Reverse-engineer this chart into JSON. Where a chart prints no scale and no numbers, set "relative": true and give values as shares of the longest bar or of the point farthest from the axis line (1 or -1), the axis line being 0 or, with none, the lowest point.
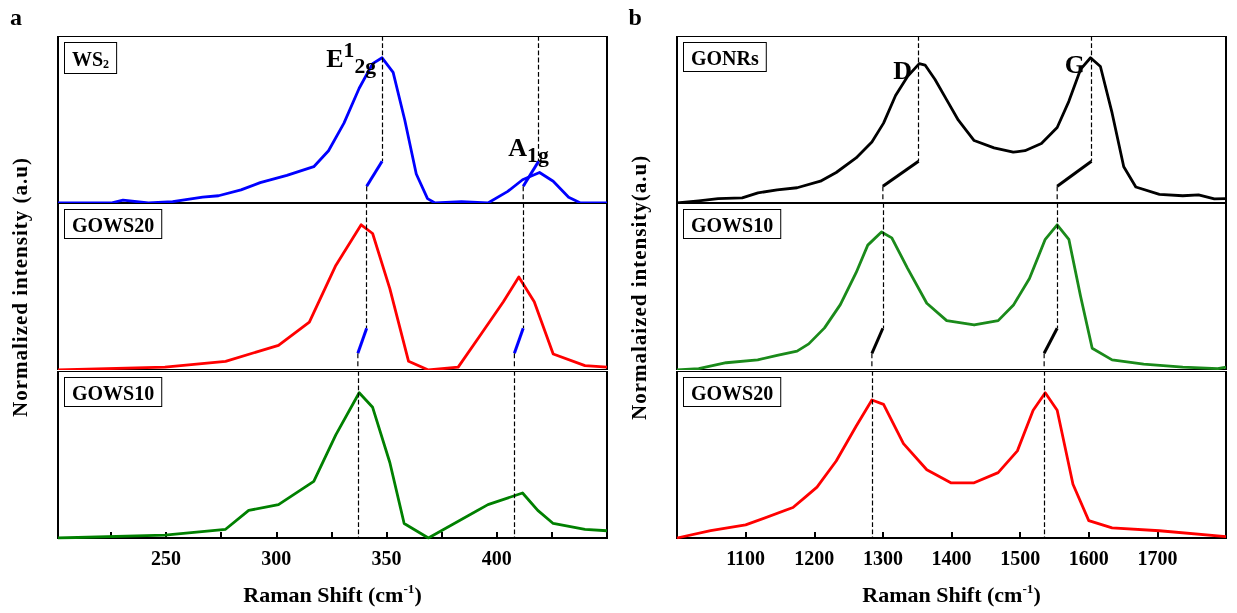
{
  "chart_data": [
    {
      "type": "line",
      "title": "a",
      "relative": true,
      "marker": "none",
      "xlim": [
        201,
        450
      ],
      "tick_labels": false,
      "x": [
        201,
        225,
        230.5,
        242,
        253,
        266.6,
        273.8,
        284,
        292.7,
        304.8,
        317,
        323.7,
        330.7,
        337.6,
        343.7,
        348,
        353,
        358.3,
        363.5,
        368.6,
        372,
        384,
        396,
        405,
        411.7,
        419.4,
        425.6,
        432.6,
        438,
        450
      ],
      "series": [
        {
          "color": "#0000ff",
          "values": [
            0,
            0,
            0.02,
            0,
            0.01,
            0.04,
            0.05,
            0.09,
            0.14,
            0.19,
            0.25,
            0.36,
            0.55,
            0.79,
            0.96,
            1,
            0.9,
            0.57,
            0.2,
            0.03,
            0,
            0.01,
            0,
            0.08,
            0.16,
            0.21,
            0.15,
            0.04,
            0,
            0
          ]
        }
      ],
      "ref_lines": [
        {
          "axis": "x",
          "value": 348,
          "color": "#000000",
          "line_style": "dashed"
        },
        {
          "axis": "x",
          "value": 419,
          "color": "#000000",
          "line_style": "dashed"
        }
      ],
      "annotations": [
        "WS$_{2}$",
        {
          "text": "E$^{1}$$_{2g}$",
          "x": 348,
          "y": 1
        },
        {
          "text": "A$_{1g}$",
          "x": 419,
          "y": 0.21
        }
      ]
    },
    {
      "type": "line",
      "relative": true,
      "marker": "none",
      "xlim": [
        201,
        450
      ],
      "tick_labels": false,
      "ylabel": "Normalized intensity (a.u)",
      "x": [
        201,
        249.5,
        277,
        301,
        315,
        327,
        338.5,
        343.7,
        351.5,
        360,
        369,
        382.5,
        393,
        403,
        410,
        417,
        425.6,
        440,
        450
      ],
      "series": [
        {
          "color": "#ff0000",
          "values": [
            0,
            0.02,
            0.06,
            0.17,
            0.33,
            0.72,
            1,
            0.94,
            0.56,
            0.06,
            0,
            0.02,
            0.25,
            0.47,
            0.64,
            0.47,
            0.11,
            0.03,
            0.02
          ]
        }
      ],
      "ref_lines": [
        {
          "axis": "x",
          "value": 341,
          "color": "#000000",
          "line_style": "dashed"
        },
        {
          "axis": "x",
          "value": 412,
          "color": "#000000",
          "line_style": "dashed"
        }
      ],
      "annotations": [
        "GOWS20"
      ]
    },
    {
      "type": "line",
      "relative": true,
      "marker": "none",
      "xlim": [
        201,
        450
      ],
      "tick_labels": "x",
      "xlabel": "Raman Shift (cm$^{-1}$)",
      "xticks": [
        {
          "value": 225,
          "label": null
        },
        250,
        {
          "value": 275,
          "label": null
        },
        300,
        {
          "value": 325,
          "label": null
        },
        350,
        {
          "value": 375,
          "label": null
        },
        400,
        {
          "value": 425,
          "label": null
        }
      ],
      "x": [
        201,
        249.5,
        277,
        287.5,
        301,
        317,
        327,
        337.6,
        343.7,
        351.5,
        358,
        369,
        396,
        411.7,
        418.6,
        425.6,
        440,
        450
      ],
      "series": [
        {
          "color": "#008000",
          "values": [
            0,
            0.02,
            0.06,
            0.19,
            0.23,
            0.39,
            0.71,
            1,
            0.9,
            0.52,
            0.1,
            0,
            0.23,
            0.31,
            0.19,
            0.1,
            0.06,
            0.05
          ]
        }
      ],
      "ref_lines": [
        {
          "axis": "x",
          "value": 337,
          "color": "#000000",
          "line_style": "dashed"
        },
        {
          "axis": "x",
          "value": 408,
          "color": "#000000",
          "line_style": "dashed"
        }
      ],
      "annotations": [
        "GOWS10"
      ]
    },
    {
      "type": "line",
      "title": "b",
      "relative": true,
      "marker": "none",
      "xlim": [
        1000,
        1800
      ],
      "tick_labels": false,
      "x": [
        1000,
        1031.6,
        1060,
        1095,
        1118,
        1146,
        1175,
        1209,
        1232,
        1261,
        1284,
        1301,
        1318.5,
        1335.7,
        1353,
        1361.5,
        1376,
        1393,
        1410,
        1433,
        1462,
        1490,
        1507,
        1531,
        1554,
        1571,
        1588,
        1602.6,
        1617,
        1634,
        1651,
        1668.6,
        1703,
        1737,
        1760,
        1783,
        1800
      ],
      "series": [
        {
          "color": "#000000",
          "values": [
            0,
            0.015,
            0.03,
            0.035,
            0.07,
            0.09,
            0.105,
            0.15,
            0.21,
            0.31,
            0.42,
            0.55,
            0.74,
            0.87,
            0.96,
            0.95,
            0.85,
            0.71,
            0.57,
            0.43,
            0.38,
            0.35,
            0.36,
            0.41,
            0.52,
            0.7,
            0.92,
            1,
            0.94,
            0.62,
            0.25,
            0.11,
            0.06,
            0.05,
            0.056,
            0.028,
            0.03
          ]
        }
      ],
      "ref_lines": [
        {
          "axis": "x",
          "value": 1352,
          "color": "#000000",
          "line_style": "dashed"
        },
        {
          "axis": "x",
          "value": 1604,
          "color": "#000000",
          "line_style": "dashed"
        }
      ],
      "annotations": [
        "GONRs",
        {
          "text": "D",
          "x": 1352,
          "y": 0.96
        },
        {
          "text": "G",
          "x": 1604,
          "y": 1
        }
      ]
    },
    {
      "type": "line",
      "relative": true,
      "marker": "none",
      "xlim": [
        1000,
        1800
      ],
      "tick_labels": false,
      "ylabel": "Normalaized intensity(a.u)",
      "x": [
        1000,
        1031.6,
        1071.7,
        1117.6,
        1146,
        1175,
        1192,
        1215,
        1238,
        1261,
        1278,
        1298,
        1313,
        1336,
        1364,
        1393,
        1433,
        1468,
        1490.7,
        1513.6,
        1536.6,
        1554,
        1571,
        1588,
        1605,
        1634,
        1680,
        1737,
        1788,
        1800
      ],
      "series": [
        {
          "color": "#1a8a1a",
          "values": [
            0,
            0.01,
            0.05,
            0.07,
            0.1,
            0.13,
            0.18,
            0.29,
            0.45,
            0.67,
            0.86,
            0.95,
            0.91,
            0.7,
            0.46,
            0.34,
            0.31,
            0.34,
            0.45,
            0.63,
            0.9,
            1,
            0.9,
            0.51,
            0.15,
            0.07,
            0.04,
            0.02,
            0.01,
            0.02
          ]
        }
      ],
      "ref_lines": [
        {
          "axis": "x",
          "value": 1300,
          "color": "#000000",
          "line_style": "dashed"
        },
        {
          "axis": "x",
          "value": 1554,
          "color": "#000000",
          "line_style": "dashed"
        }
      ],
      "annotations": [
        "GOWS10"
      ]
    },
    {
      "type": "line",
      "relative": true,
      "marker": "none",
      "xlim": [
        1000,
        1800
      ],
      "tick_labels": "x",
      "xlabel": "Raman Shift (cm$^{-1}$)",
      "xticks": [
        1100,
        1200,
        1300,
        1400,
        1500,
        1600,
        1700
      ],
      "x": [
        1000,
        1049,
        1100,
        1169,
        1186.5,
        1204,
        1232,
        1261,
        1284,
        1301,
        1330,
        1364,
        1399,
        1433,
        1468,
        1496,
        1519,
        1536.6,
        1554,
        1577,
        1600,
        1634,
        1703,
        1800
      ],
      "series": [
        {
          "color": "#ff0000",
          "values": [
            0,
            0.05,
            0.09,
            0.21,
            0.28,
            0.35,
            0.53,
            0.77,
            0.95,
            0.92,
            0.65,
            0.47,
            0.38,
            0.38,
            0.45,
            0.6,
            0.88,
            1,
            0.88,
            0.37,
            0.12,
            0.07,
            0.05,
            0.01
          ]
        }
      ],
      "ref_lines": [
        {
          "axis": "x",
          "value": 1284,
          "color": "#000000",
          "line_style": "dashed"
        },
        {
          "axis": "x",
          "value": 1535,
          "color": "#000000",
          "line_style": "dashed"
        }
      ],
      "annotations": [
        "GOWS20"
      ]
    }
  ]
}
